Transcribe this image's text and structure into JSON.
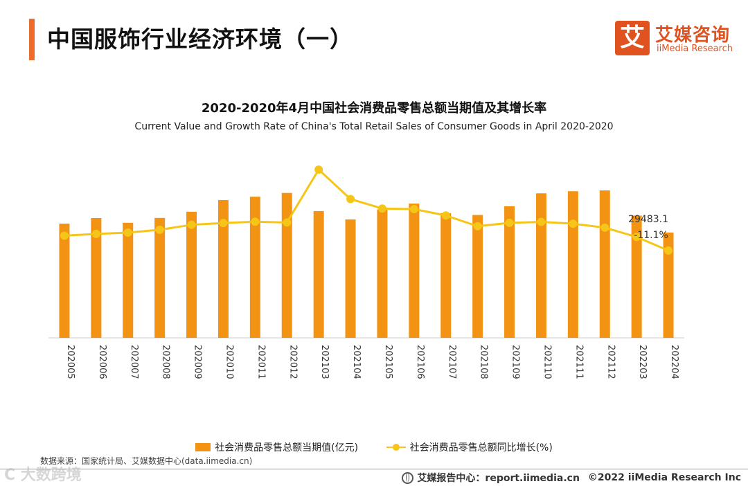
{
  "header": {
    "title": "中国服饰行业经济环境（一）",
    "logo_mark": "艾",
    "logo_cn": "艾媒咨询",
    "logo_en": "iiMedia Research"
  },
  "chart_data": {
    "type": "bar+line",
    "title": "2020-2020年4月中国社会消费品零售总额当期值及其增长率",
    "subtitle": "Current Value and Growth Rate of China's Total Retail Sales of Consumer Goods in April 2020-2020",
    "categories": [
      "202005",
      "202006",
      "202007",
      "202008",
      "202009",
      "202010",
      "202011",
      "202012",
      "202103",
      "202104",
      "202105",
      "202106",
      "202107",
      "202108",
      "202109",
      "202110",
      "202111",
      "202112",
      "202203",
      "202204"
    ],
    "series": [
      {
        "name": "社会消费品零售总额当期值(亿元)",
        "type": "bar",
        "axis": "left",
        "color": "#f39314",
        "values": [
          31973,
          33526,
          32203,
          33571,
          35295,
          38576,
          39514,
          40566,
          35484,
          33153,
          35945,
          37586,
          34925,
          34395,
          36833,
          40454,
          41043,
          41269,
          34233,
          29483.1
        ]
      },
      {
        "name": "社会消费品零售总额同比增长(%)",
        "type": "line",
        "axis": "right",
        "color": "#f5c518",
        "values": [
          -2.8,
          -1.8,
          -1.1,
          0.5,
          3.3,
          4.3,
          5.0,
          4.6,
          34.2,
          17.7,
          12.4,
          12.1,
          8.5,
          2.5,
          4.4,
          4.9,
          3.9,
          1.7,
          -3.5,
          -11.1
        ]
      }
    ],
    "labels": {
      "last_growth": "-11.1%",
      "last_value": "29483.1"
    },
    "y_left_range": [
      0,
      50000
    ],
    "y_right_range": [
      -60,
      40
    ],
    "grid": false,
    "legend_position": "bottom"
  },
  "legend": {
    "bar_label": "社会消费品零售总额当期值(亿元)",
    "line_label": "社会消费品零售总额同比增长(%)"
  },
  "footer": {
    "source": "数据来源：国家统计局、艾媒数据中心(data.iimedia.cn)",
    "watermark": "C 大数跨境",
    "report_center": "艾媒报告中心：report.iimedia.cn",
    "copyright": "©2022  iiMedia Research  Inc"
  }
}
